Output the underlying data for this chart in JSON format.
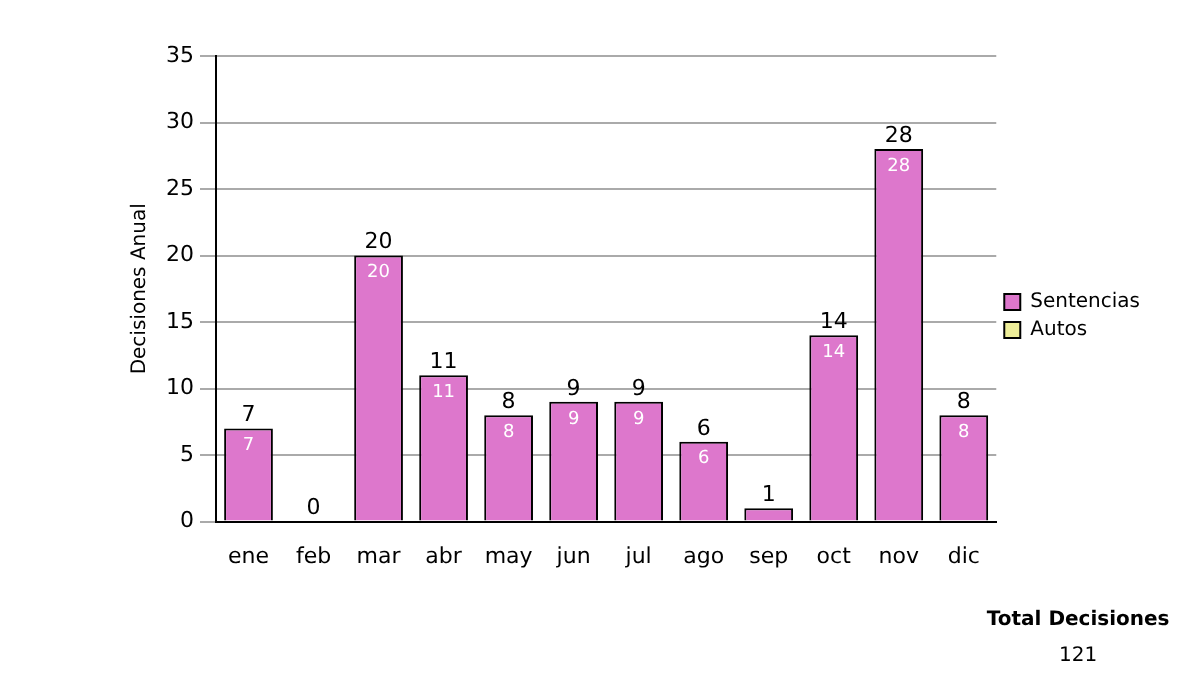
{
  "chart_data": {
    "type": "bar",
    "ylabel": "Decisiones Anual",
    "categories": [
      "ene",
      "feb",
      "mar",
      "abr",
      "may",
      "jun",
      "jul",
      "ago",
      "sep",
      "oct",
      "nov",
      "dic"
    ],
    "stacked": true,
    "series": [
      {
        "name": "Sentencias",
        "color": "#dd77cc",
        "values": [
          7,
          0,
          20,
          11,
          8,
          9,
          9,
          6,
          1,
          14,
          28,
          8
        ],
        "value_labels": [
          "7",
          null,
          "20",
          "11",
          "8",
          "9",
          "9",
          "6",
          null,
          "14",
          "28",
          "8"
        ]
      },
      {
        "name": "Autos",
        "color": "#eeee99",
        "values": [
          0,
          0,
          0,
          0,
          0,
          0,
          0,
          0,
          0,
          0,
          0,
          0
        ]
      }
    ],
    "totals": [
      "7",
      "0",
      "20",
      "11",
      "8",
      "9",
      "9",
      "6",
      "1",
      "14",
      "28",
      "8"
    ],
    "ylim": [
      0,
      35
    ],
    "yticks": [
      0,
      5,
      10,
      15,
      20,
      25,
      30,
      35
    ],
    "grid": "y",
    "legend": "right",
    "annotations": [
      "Total Decisiones",
      "121"
    ]
  }
}
